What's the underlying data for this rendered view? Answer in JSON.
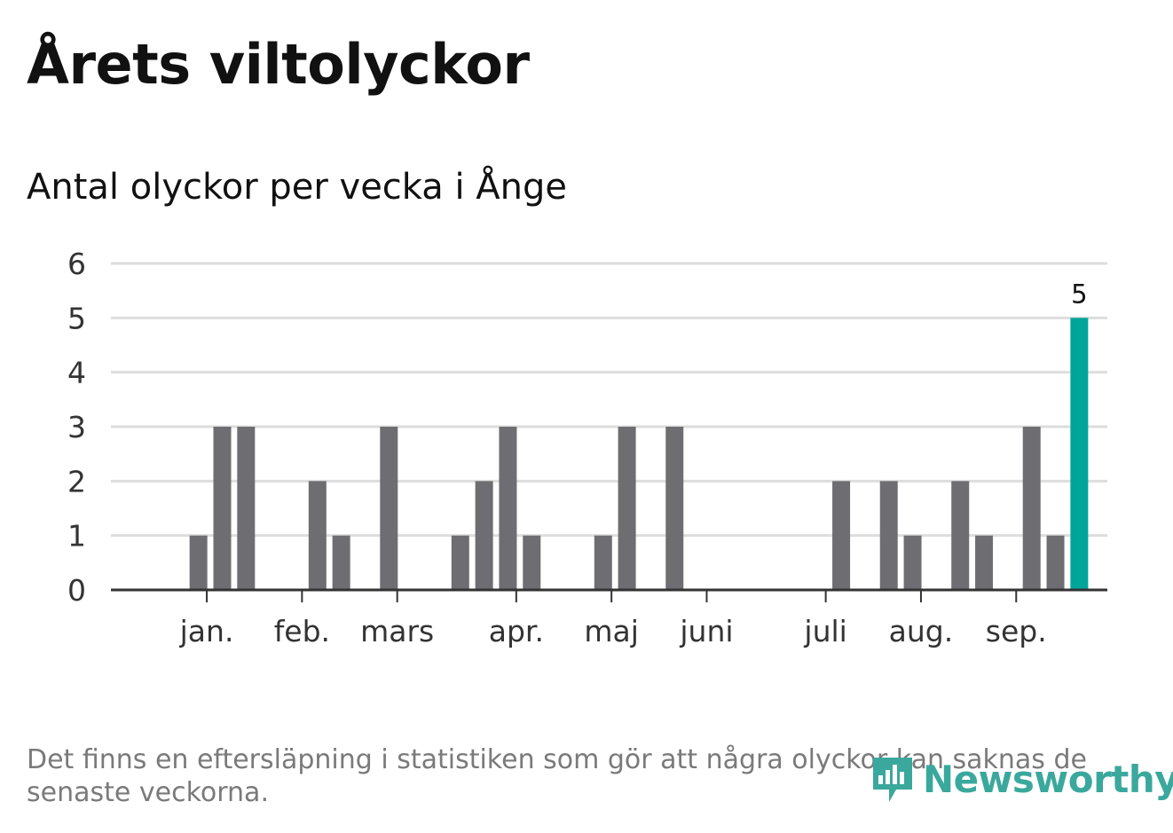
{
  "title": "Årets viltolyckor",
  "footnote": "Det finns en eftersläpning i statistiken som gör att några olyckor kan saknas de senaste veckorna.",
  "brand": {
    "name": "Newsworthy",
    "color": "#3aa89c"
  },
  "colors": {
    "bar": "#6e6d72",
    "highlight": "#00a59a",
    "grid": "#dddddd",
    "axis": "#333333"
  },
  "chart_data": {
    "type": "bar",
    "title": "Antal olyckor per vecka i Ånge",
    "xlabel": "",
    "ylabel": "",
    "ylim": [
      0,
      6
    ],
    "yticks": [
      0,
      1,
      2,
      3,
      4,
      5,
      6
    ],
    "weeks": [
      1,
      2,
      3,
      4,
      5,
      6,
      7,
      8,
      9,
      10,
      11,
      12,
      13,
      14,
      15,
      16,
      17,
      18,
      19,
      20,
      21,
      22,
      23,
      24,
      25,
      26,
      27,
      28,
      29,
      30,
      31,
      32,
      33,
      34,
      35,
      36,
      37,
      38,
      39,
      40
    ],
    "values": [
      0,
      0,
      1,
      3,
      3,
      0,
      0,
      2,
      1,
      0,
      3,
      0,
      0,
      1,
      2,
      3,
      1,
      0,
      0,
      1,
      3,
      0,
      3,
      0,
      0,
      0,
      0,
      0,
      0,
      2,
      0,
      2,
      1,
      0,
      2,
      1,
      0,
      3,
      1,
      5
    ],
    "highlight_index": 39,
    "highlight_label": "5",
    "month_ticks": [
      {
        "label": "jan.",
        "week": 3.35
      },
      {
        "label": "feb.",
        "week": 7.35
      },
      {
        "label": "mars",
        "week": 11.35
      },
      {
        "label": "apr.",
        "week": 16.35
      },
      {
        "label": "maj",
        "week": 20.35
      },
      {
        "label": "juni",
        "week": 24.35
      },
      {
        "label": "juli",
        "week": 29.35
      },
      {
        "label": "aug.",
        "week": 33.35
      },
      {
        "label": "sep.",
        "week": 37.35
      }
    ]
  }
}
